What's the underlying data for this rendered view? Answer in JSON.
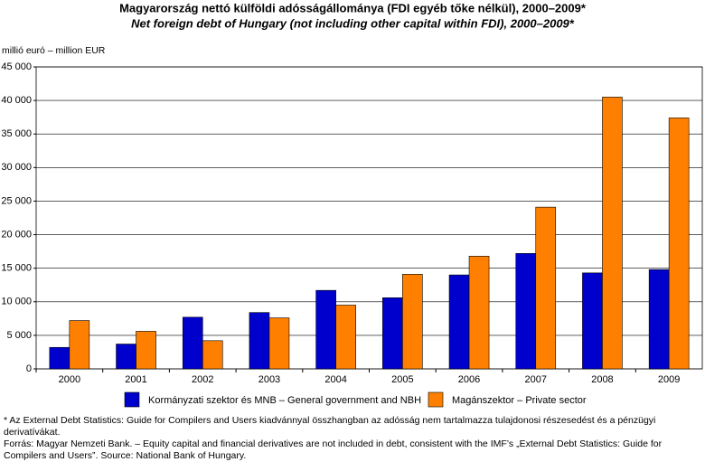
{
  "chart_data": {
    "type": "bar",
    "title": "Magyarország nettó külföldi adósságállománya (FDI egyéb tőke nélkül), 2000–2009*",
    "subtitle": "Net foreign debt of Hungary (not including other capital within FDI), 2000–2009*",
    "y_label": "millió euró – million EUR",
    "categories": [
      "2000",
      "2001",
      "2002",
      "2003",
      "2004",
      "2005",
      "2006",
      "2007",
      "2008",
      "2009"
    ],
    "series": [
      {
        "name": "Kormányzati szektor és MNB – General government and NBH",
        "color": "#0000cc",
        "values": [
          3200,
          3700,
          7700,
          8400,
          11700,
          10600,
          14000,
          17200,
          14300,
          14800
        ]
      },
      {
        "name": "Magánszektor – Private sector",
        "color": "#ff8000",
        "values": [
          7200,
          5600,
          4200,
          7600,
          9500,
          14100,
          16800,
          24100,
          40500,
          37400
        ]
      }
    ],
    "ylim": [
      0,
      45000
    ],
    "yticks": [
      0,
      {
        "value": 5000,
        "label": "5 000"
      },
      {
        "value": 10000,
        "label": "10 000"
      },
      {
        "value": 15000,
        "label": "15 000"
      },
      {
        "value": 20000,
        "label": "20 000"
      },
      {
        "value": 25000,
        "label": "25 000"
      },
      {
        "value": 30000,
        "label": "30 000"
      },
      {
        "value": 35000,
        "label": "35 000"
      },
      {
        "value": 40000,
        "label": "40 000"
      },
      {
        "value": 45000,
        "label": "45 000"
      }
    ],
    "grid": true,
    "notes": [
      "* Az External Debt Statistics: Guide for Compilers and Users kiadvánnyal összhangban az adósság nem tartalmazza tulajdonosi részesedést és a pénzügyi derivatívákat.",
      "Forrás: Magyar Nemzeti Bank. – Equity capital and financial derivatives are not included in debt, consistent with the IMF’s „External Debt Statistics: Guide for Compilers and Users”. Source: National Bank of Hungary."
    ]
  }
}
